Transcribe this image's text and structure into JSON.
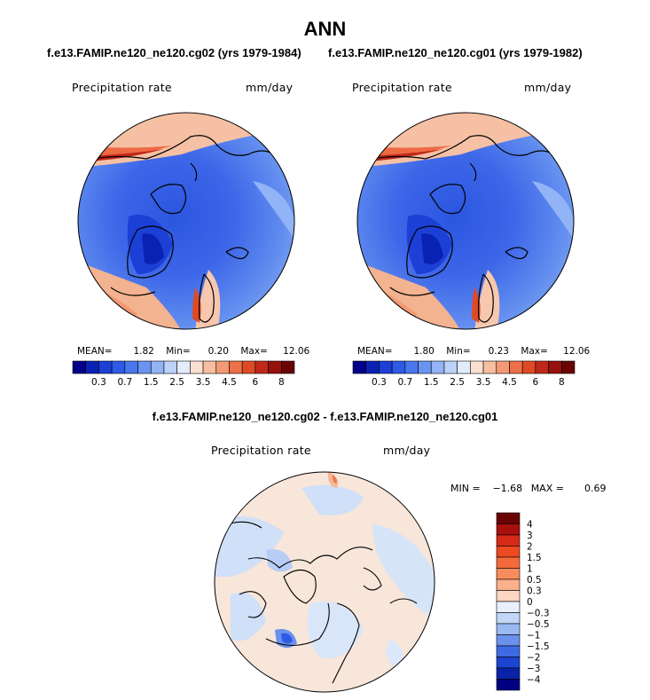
{
  "header": {
    "title": "ANN",
    "subtitle_left": "f.e13.FAMIP.ne120_ne120.cg02 (yrs 1979-1984)",
    "subtitle_right": "f.e13.FAMIP.ne120_ne120.cg01 (yrs 1979-1982)",
    "diff_title": "f.e13.FAMIP.ne120_ne120.cg02 - f.e13.FAMIP.ne120_ne120.cg01"
  },
  "chart_data": [
    {
      "type": "heatmap",
      "projection": "north-polar-stereographic",
      "variable": "Precipitation rate",
      "units": "mm/day",
      "stats": {
        "mean_label": "MEAN=",
        "mean": "1.82",
        "min_label": "Min=",
        "min": "0.20",
        "max_label": "Max=",
        "max": "12.06"
      },
      "colorbar": {
        "orientation": "horizontal",
        "levels": [
          0.2,
          0.3,
          0.5,
          0.7,
          1,
          1.5,
          2,
          2.5,
          3,
          3.5,
          4,
          4.5,
          5,
          6,
          7,
          8
        ],
        "tick_labels": [
          "0.3",
          "0.7",
          "1.5",
          "2.5",
          "3.5",
          "4.5",
          "6",
          "8"
        ],
        "colors": [
          "#00008a",
          "#0a22b4",
          "#1c3fd6",
          "#2e5ae6",
          "#4a76ee",
          "#6a94f2",
          "#92b3f5",
          "#bcd2f8",
          "#e2ecfb",
          "#fbe0d2",
          "#f7bea0",
          "#f39a74",
          "#ec7048",
          "#df4a26",
          "#c0281a",
          "#96100c",
          "#6a0404"
        ]
      }
    },
    {
      "type": "heatmap",
      "projection": "north-polar-stereographic",
      "variable": "Precipitation rate",
      "units": "mm/day",
      "stats": {
        "mean_label": "MEAN=",
        "mean": "1.80",
        "min_label": "Min=",
        "min": "0.23",
        "max_label": "Max=",
        "max": "12.06"
      },
      "colorbar": {
        "orientation": "horizontal",
        "levels": [
          0.2,
          0.3,
          0.5,
          0.7,
          1,
          1.5,
          2,
          2.5,
          3,
          3.5,
          4,
          4.5,
          5,
          6,
          7,
          8
        ],
        "tick_labels": [
          "0.3",
          "0.7",
          "1.5",
          "2.5",
          "3.5",
          "4.5",
          "6",
          "8"
        ],
        "colors": [
          "#00008a",
          "#0a22b4",
          "#1c3fd6",
          "#2e5ae6",
          "#4a76ee",
          "#6a94f2",
          "#92b3f5",
          "#bcd2f8",
          "#e2ecfb",
          "#fbe0d2",
          "#f7bea0",
          "#f39a74",
          "#ec7048",
          "#df4a26",
          "#c0281a",
          "#96100c",
          "#6a0404"
        ]
      }
    },
    {
      "type": "heatmap",
      "projection": "north-polar-stereographic",
      "variable": "Precipitation rate",
      "units": "mm/day",
      "stats": {
        "min_label": "MIN =",
        "min": "−1.68",
        "max_label": "MAX =",
        "max": "0.69"
      },
      "colorbar": {
        "orientation": "vertical",
        "levels": [
          -4,
          -3,
          -2,
          -1.5,
          -1,
          -0.5,
          -0.3,
          0,
          0.3,
          0.5,
          1,
          1.5,
          2,
          3,
          4
        ],
        "tick_labels": [
          "4",
          "3",
          "2",
          "1.5",
          "1",
          "0.5",
          "0.3",
          "0",
          "−0.3",
          "−0.5",
          "−1",
          "−1.5",
          "−2",
          "−3",
          "−4"
        ],
        "colors": [
          "#6a0404",
          "#a8100c",
          "#d82a18",
          "#ee4a22",
          "#f56a3a",
          "#f88c5c",
          "#fab08a",
          "#fdd6c2",
          "#e8f0fc",
          "#c2d6f8",
          "#9ab8f2",
          "#6a92ec",
          "#3e6ae4",
          "#1c44d0",
          "#0a22a8",
          "#000080"
        ]
      }
    }
  ]
}
